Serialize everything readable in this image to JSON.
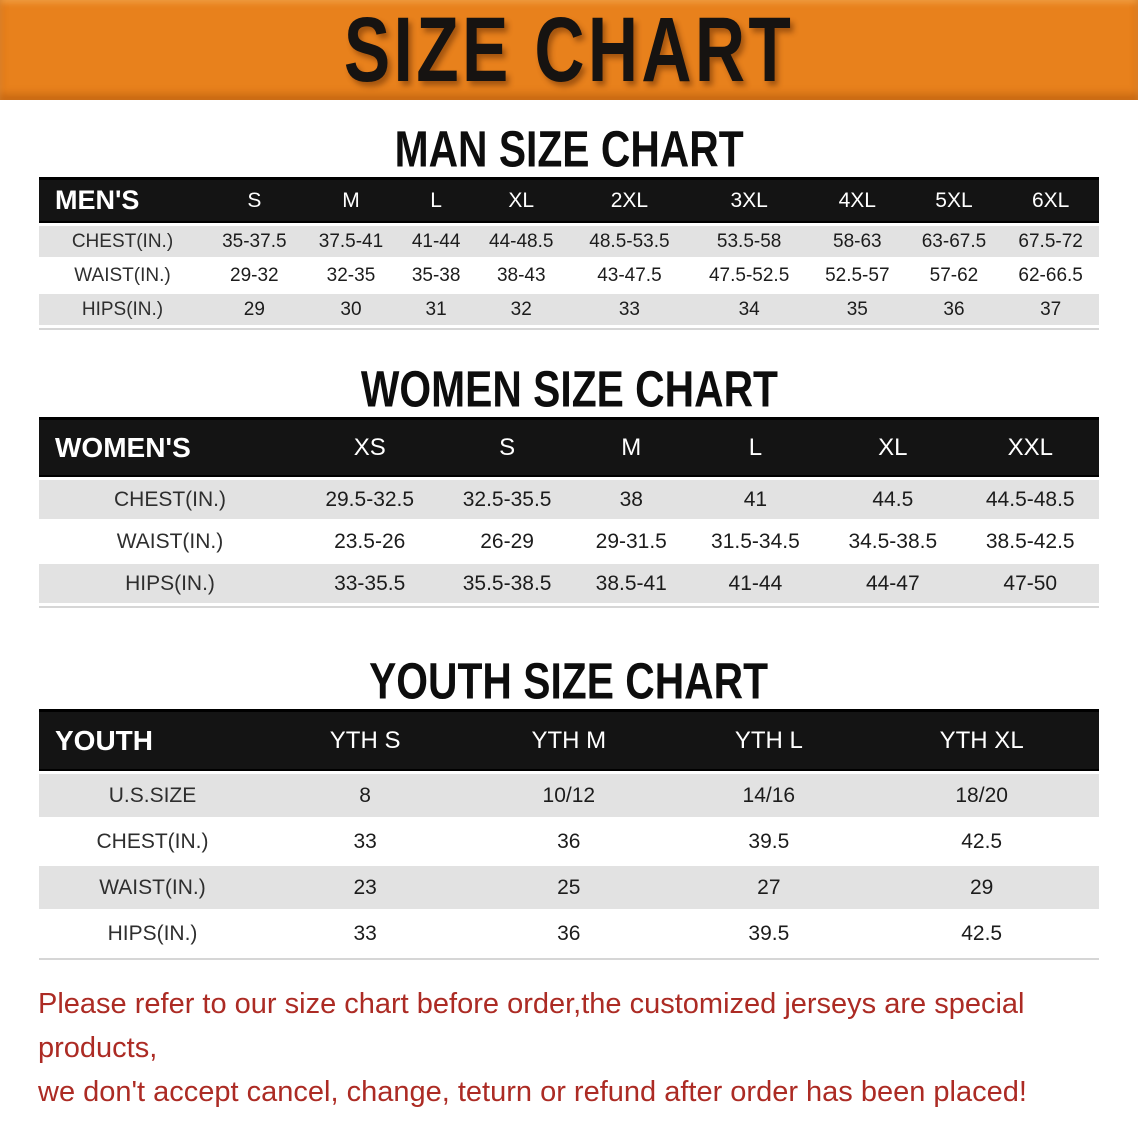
{
  "banner": {
    "title": "SIZE CHART"
  },
  "colors": {
    "banner_bg": "#E8811C",
    "table_header_bg": "#141414",
    "row_stripe_bg": "#E2E2E2",
    "footer_text": "#AC2B24"
  },
  "sections": [
    {
      "heading": "MAN SIZE CHART",
      "table": {
        "label": "MEN'S",
        "columns": [
          "S",
          "M",
          "L",
          "XL",
          "2XL",
          "3XL",
          "4XL",
          "5XL",
          "6XL"
        ],
        "rows": [
          {
            "label": "CHEST(IN.)",
            "values": [
              "35-37.5",
              "37.5-41",
              "41-44",
              "44-48.5",
              "48.5-53.5",
              "53.5-58",
              "58-63",
              "63-67.5",
              "67.5-72"
            ]
          },
          {
            "label": "WAIST(IN.)",
            "values": [
              "29-32",
              "32-35",
              "35-38",
              "38-43",
              "43-47.5",
              "47.5-52.5",
              "52.5-57",
              "57-62",
              "62-66.5"
            ]
          },
          {
            "label": "HIPS(IN.)",
            "values": [
              "29",
              "30",
              "31",
              "32",
              "33",
              "34",
              "35",
              "36",
              "37"
            ]
          }
        ]
      }
    },
    {
      "heading": "WOMEN SIZE CHART",
      "table": {
        "label": "WOMEN'S",
        "columns": [
          "XS",
          "S",
          "M",
          "L",
          "XL",
          "XXL"
        ],
        "rows": [
          {
            "label": "CHEST(IN.)",
            "values": [
              "29.5-32.5",
              "32.5-35.5",
              "38",
              "41",
              "44.5",
              "44.5-48.5"
            ]
          },
          {
            "label": "WAIST(IN.)",
            "values": [
              "23.5-26",
              "26-29",
              "29-31.5",
              "31.5-34.5",
              "34.5-38.5",
              "38.5-42.5"
            ]
          },
          {
            "label": "HIPS(IN.)",
            "values": [
              "33-35.5",
              "35.5-38.5",
              "38.5-41",
              "41-44",
              "44-47",
              "47-50"
            ]
          }
        ]
      }
    },
    {
      "heading": "YOUTH SIZE CHART",
      "table": {
        "label": "YOUTH",
        "columns": [
          "YTH S",
          "YTH M",
          "YTH L",
          "YTH XL"
        ],
        "rows": [
          {
            "label": "U.S.SIZE",
            "values": [
              "8",
              "10/12",
              "14/16",
              "18/20"
            ]
          },
          {
            "label": "CHEST(IN.)",
            "values": [
              "33",
              "36",
              "39.5",
              "42.5"
            ]
          },
          {
            "label": "WAIST(IN.)",
            "values": [
              "23",
              "25",
              "27",
              "29"
            ]
          },
          {
            "label": "HIPS(IN.)",
            "values": [
              "33",
              "36",
              "39.5",
              "42.5"
            ]
          }
        ]
      }
    }
  ],
  "footer": {
    "line1": "Please refer to our size chart before order,the customized jerseys are special products,",
    "line2": "we don't accept cancel, change, teturn or refund after order has been placed!"
  }
}
